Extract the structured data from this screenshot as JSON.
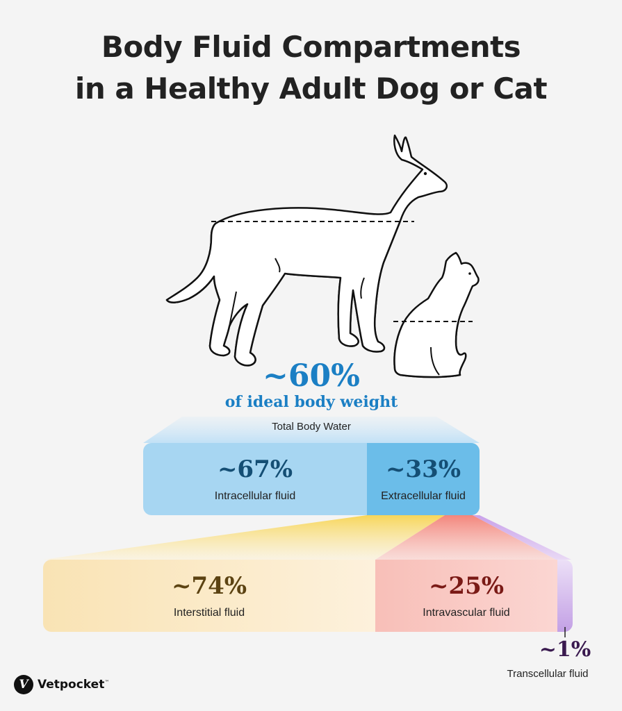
{
  "title": {
    "line1": "Body Fluid Compartments",
    "line2": "in a Healthy Adult Dog or Cat"
  },
  "total": {
    "percent": "~60%",
    "subtitle": "of ideal body weight",
    "label": "Total Body Water"
  },
  "level1": [
    {
      "percent": "~67%",
      "label": "Intracellular fluid"
    },
    {
      "percent": "~33%",
      "label": "Extracellular fluid"
    }
  ],
  "level2": [
    {
      "percent": "~74%",
      "label": "Interstitial fluid"
    },
    {
      "percent": "~25%",
      "label": "Intravascular fluid"
    },
    {
      "percent": "~1%",
      "label": "Transcellular fluid"
    }
  ],
  "brand": {
    "name": "Vetpocket",
    "mark": "V",
    "tm": "™"
  },
  "colors": {
    "water": "#1b8fd2",
    "intracellular": "#a7d6f2",
    "extracellular": "#6bbde9",
    "interstitial": "#fbeccb",
    "intravascular": "#f9c8c2",
    "transcellular": "#dcc4ee",
    "dark_blue": "#144e74",
    "brown": "#5c4312",
    "dark_red": "#7a1a16",
    "purple": "#3a1a4f"
  },
  "icons": [
    "dog-silhouette-icon",
    "cat-silhouette-icon",
    "vetpocket-logo-icon"
  ]
}
